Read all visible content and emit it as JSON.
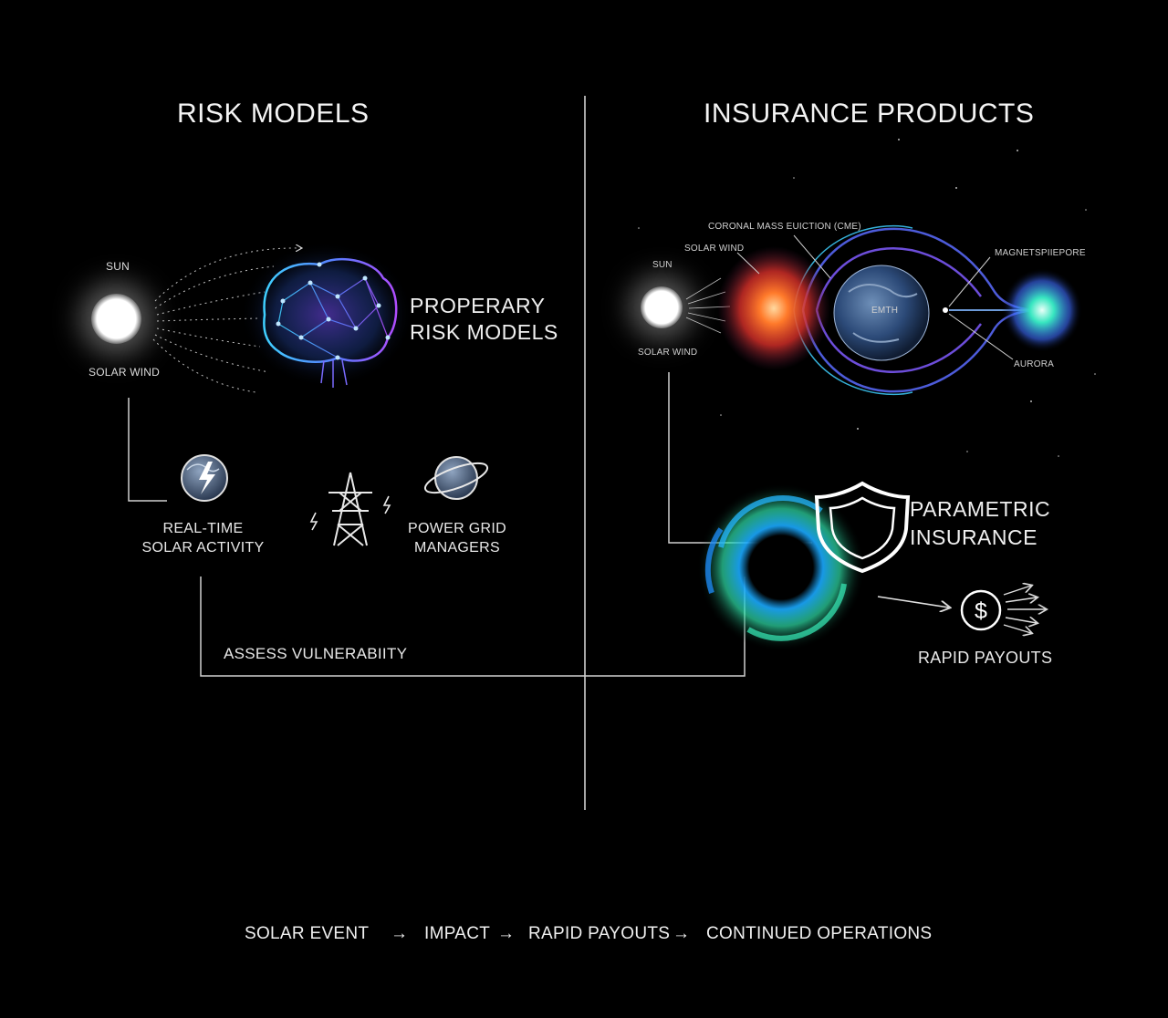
{
  "left": {
    "title": "RISK MODELS",
    "sun_label": "SUN",
    "solar_wind_label": "SOLAR WIND",
    "brain_label_line1": "PROPERARY",
    "brain_label_line2": "RISK MODELS",
    "realtime_line1": "REAL-TIME",
    "realtime_line2": "SOLAR ACTIVITY",
    "grid_line1": "POWER GRID",
    "grid_line2": "MANAGERS",
    "assess_label": "ASSESS VULNERABIITY"
  },
  "right": {
    "title": "INSURANCE PRODUCTS",
    "cme_label": "CORONAL MASS EUICTION (CME)",
    "solar_wind_top": "SOLAR WIND",
    "sun_label": "SUN",
    "solar_wind_bottom": "SOLAR WIND",
    "earth_label": "EMTH",
    "magnetosphere_label": "MAGNETSPIIEPORE",
    "aurora_label": "AURORA",
    "parametric_line1": "PARAMETRIC",
    "parametric_line2": "INSURANCE",
    "payouts_label": "RAPID PAYOUTS"
  },
  "flow": {
    "steps": [
      "SOLAR EVENT",
      "IMPACT",
      "RAPID PAYOUTS",
      "CONTINUED OPERATIONS"
    ],
    "arrow": "→"
  },
  "icons": {
    "sun": "sun-glow",
    "brain": "neural-brain",
    "globe_bolt": "globe-lightning",
    "tower": "power-tower",
    "planet": "ringed-globe",
    "earth": "earth-globe",
    "shield": "shield",
    "dollar": "dollar-coin"
  },
  "colors": {
    "background": "#000000",
    "text": "#f0f0f0",
    "lines": "#cfcfcf",
    "brain_blue": "#3fa9ff",
    "brain_purple": "#a04dff",
    "cme_orange": "#ff5a1f",
    "swirl_cyan": "#26d3ff",
    "swirl_green": "#3de39a"
  }
}
